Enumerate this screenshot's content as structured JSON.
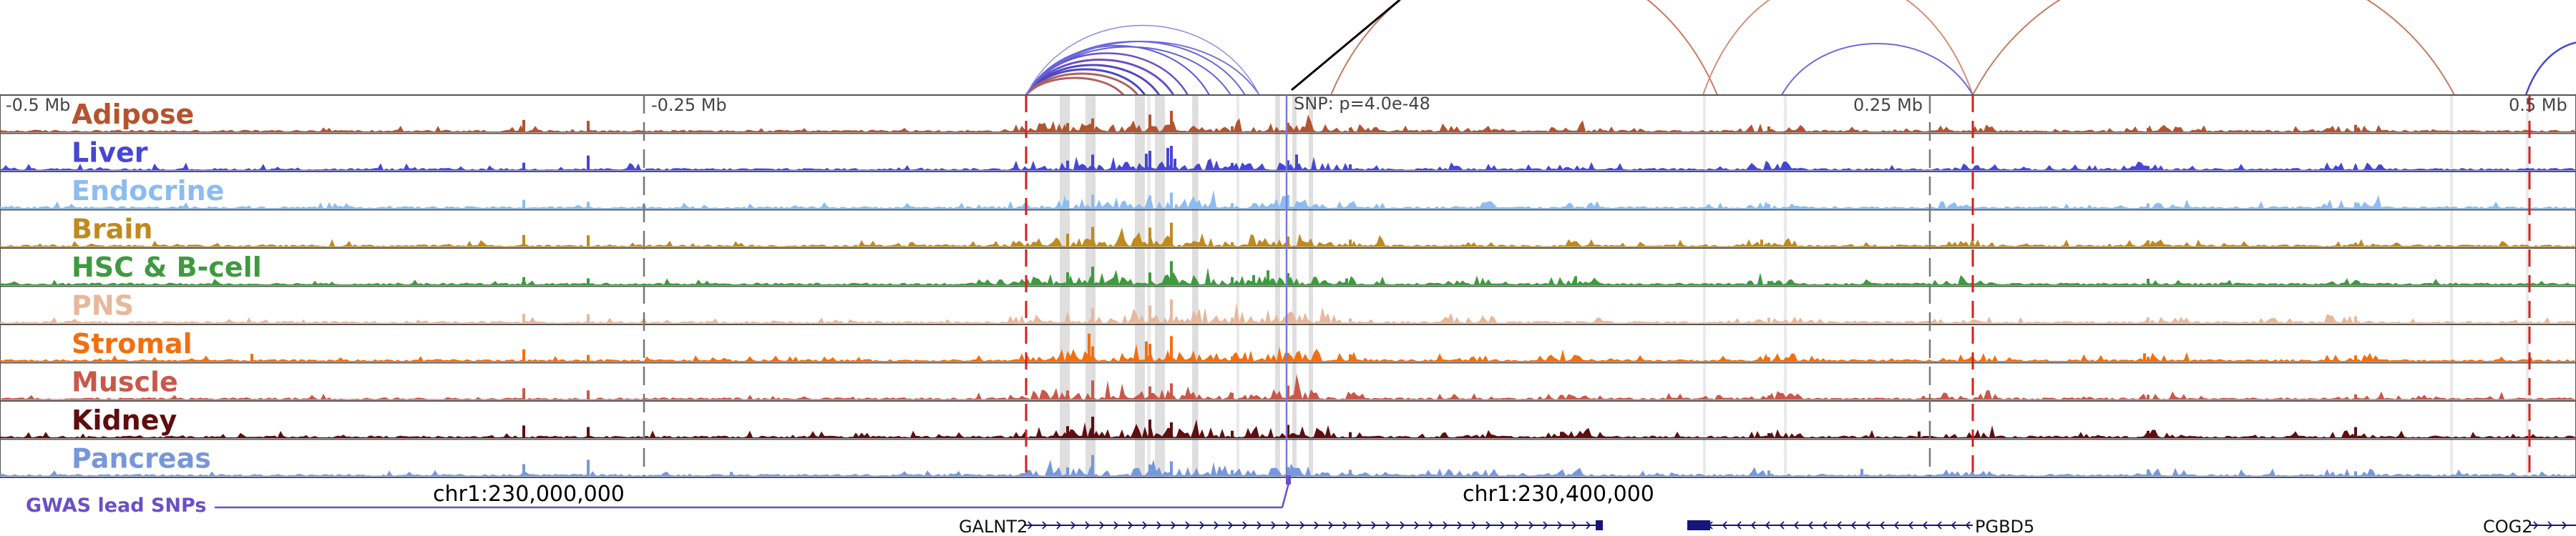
{
  "scale_labels": [
    "-0.5 Mb",
    "-0.25 Mb",
    "0.25 Mb",
    "0.5 Mb"
  ],
  "snp_label": "SNP: p=4.0e-48",
  "tracks": [
    {
      "label": "Adipose",
      "color": "#b5532e"
    },
    {
      "label": "Liver",
      "color": "#4646d6"
    },
    {
      "label": "Endocrine",
      "color": "#8cbcf2"
    },
    {
      "label": "Brain",
      "color": "#bf8a1e"
    },
    {
      "label": "HSC & B-cell",
      "color": "#3f9a3f"
    },
    {
      "label": "PNS",
      "color": "#e7b89b"
    },
    {
      "label": "Stromal",
      "color": "#f26f0f"
    },
    {
      "label": "Muscle",
      "color": "#c9584a"
    },
    {
      "label": "Kidney",
      "color": "#5e0e0e"
    },
    {
      "label": "Pancreas",
      "color": "#7797dc"
    }
  ],
  "gwas_label": "GWAS lead SNPs",
  "gwas_color": "#6b4fc8",
  "coord_labels": [
    "chr1:230,000,000",
    "chr1:230,400,000"
  ],
  "genes": [
    {
      "name": "GALNT2",
      "strand": "+"
    },
    {
      "name": "PGBD5",
      "strand": "-"
    },
    {
      "name": "COG2",
      "strand": "+"
    }
  ],
  "gene_color": "#15157a"
}
